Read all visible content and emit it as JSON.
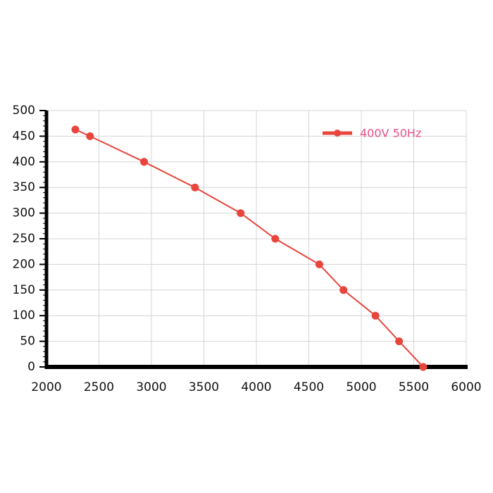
{
  "chart_data": {
    "type": "line",
    "x": [
      2275,
      2415,
      2930,
      3415,
      3850,
      4180,
      4600,
      4830,
      5135,
      5360,
      5590
    ],
    "series": [
      {
        "name": "400V 50Hz",
        "color": "#e8453c",
        "values": [
          463,
          450,
          400,
          350,
          300,
          250,
          200,
          150,
          100,
          50,
          0
        ]
      }
    ],
    "xlim": [
      2000,
      6000
    ],
    "xticks": [
      2000,
      2500,
      3000,
      3500,
      4000,
      4500,
      5000,
      5500,
      6000
    ],
    "ylim": [
      0,
      500
    ],
    "yticks": [
      0,
      50,
      100,
      150,
      200,
      250,
      300,
      350,
      400,
      450,
      500
    ],
    "grid": true,
    "legend": "top-right"
  }
}
